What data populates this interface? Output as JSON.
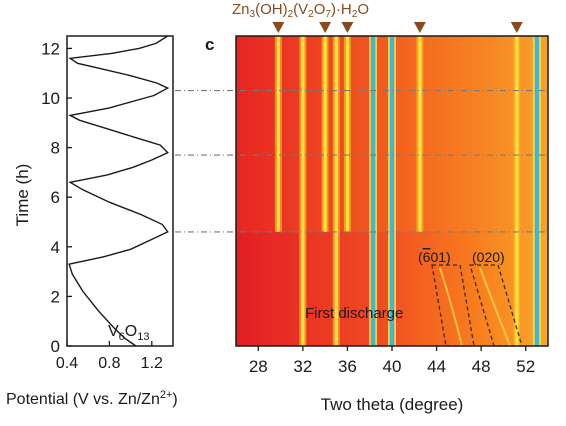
{
  "figure": {
    "panel_label": "c",
    "compound_parts": {
      "pre": "Zn",
      "s1": "3",
      "mid1": "(OH)",
      "s2": "2",
      "mid2": "(V",
      "s3": "2",
      "mid3": "O",
      "s4": "7",
      "post": ")·H",
      "s5": "2",
      "end": "O"
    },
    "v6o13_parts": {
      "pre": "V",
      "s1": "6",
      "mid": "O",
      "s2": "13"
    },
    "potential_label": {
      "pre": "Potential (V vs. Zn/Zn",
      "sup": "2+",
      "post": ")"
    },
    "peak_label_601": "(601)",
    "peak_label_020": "(020)",
    "first_discharge": "First discharge"
  },
  "colors": {
    "heatmap_base": "#e8202a",
    "heatmap_mid": "#f57b20",
    "peak_yellow": "#ffe23a",
    "peak_cyan": "#3fb8d8",
    "marker": "#8b4a1b",
    "dashed": "#7a7a7a"
  },
  "chart_data": [
    {
      "type": "line",
      "ylabel": "Time (h)",
      "xlabel": "Potential (V vs. Zn/Zn2+)",
      "xlim": [
        0.4,
        1.4
      ],
      "ylim": [
        0,
        12.5
      ],
      "xticks": [
        "0.4",
        "0.8",
        "1.2"
      ],
      "yticks": [
        "0",
        "2",
        "4",
        "6",
        "8",
        "10",
        "12"
      ],
      "annotation": "V6O13",
      "series": [
        {
          "x": [
            1.05,
            0.95,
            0.85,
            0.7,
            0.55,
            0.45,
            0.42,
            0.75,
            1.0,
            1.2,
            1.35,
            1.3,
            1.1,
            0.8,
            0.55,
            0.43,
            0.78,
            1.02,
            1.2,
            1.35,
            1.28,
            1.05,
            0.75,
            0.52,
            0.43,
            0.8,
            1.05,
            1.22,
            1.35,
            1.25,
            1.0,
            0.7,
            0.5,
            0.43,
            0.82,
            1.08,
            1.24,
            1.35,
            1.25,
            1.0,
            0.7,
            0.5,
            0.43,
            0.85,
            1.1,
            1.28,
            1.35
          ],
          "y": [
            0.0,
            0.3,
            0.7,
            1.4,
            2.2,
            2.9,
            3.3,
            3.6,
            3.9,
            4.3,
            4.6,
            4.9,
            5.3,
            5.8,
            6.3,
            6.6,
            6.9,
            7.2,
            7.5,
            7.8,
            8.1,
            8.4,
            8.8,
            9.1,
            9.3,
            9.6,
            9.9,
            10.1,
            10.4,
            10.6,
            10.9,
            11.2,
            11.4,
            11.6,
            11.8,
            12.0,
            12.2,
            12.5,
            12.5,
            12.5,
            12.5,
            12.5,
            12.5,
            12.5,
            12.5,
            12.5,
            12.5
          ]
        }
      ]
    },
    {
      "type": "heatmap",
      "xlabel": "Two theta (degree)",
      "xlim": [
        26,
        54
      ],
      "ylim": [
        0,
        12.5
      ],
      "xticks": [
        "28",
        "32",
        "36",
        "40",
        "44",
        "48",
        "52"
      ],
      "marker_positions": [
        29.8,
        34.0,
        36.0,
        42.5,
        51.2
      ],
      "peaks": [
        {
          "x": 29.8,
          "kind": "yellow",
          "start": 4.6
        },
        {
          "x": 32.0,
          "kind": "yellow",
          "start": 0
        },
        {
          "x": 34.0,
          "kind": "yellow",
          "start": 4.6
        },
        {
          "x": 35.0,
          "kind": "yellow",
          "start": 0
        },
        {
          "x": 36.0,
          "kind": "yellow",
          "start": 4.6
        },
        {
          "x": 38.3,
          "kind": "cyan",
          "start": 0
        },
        {
          "x": 40.0,
          "kind": "cyan",
          "start": 0
        },
        {
          "x": 42.5,
          "kind": "yellow",
          "start": 4.6
        },
        {
          "x": 51.2,
          "kind": "yellow",
          "start": 0
        },
        {
          "x": 53.0,
          "kind": "cyan",
          "start": 0
        }
      ],
      "guide_times": [
        10.3,
        7.7,
        4.6
      ]
    }
  ]
}
